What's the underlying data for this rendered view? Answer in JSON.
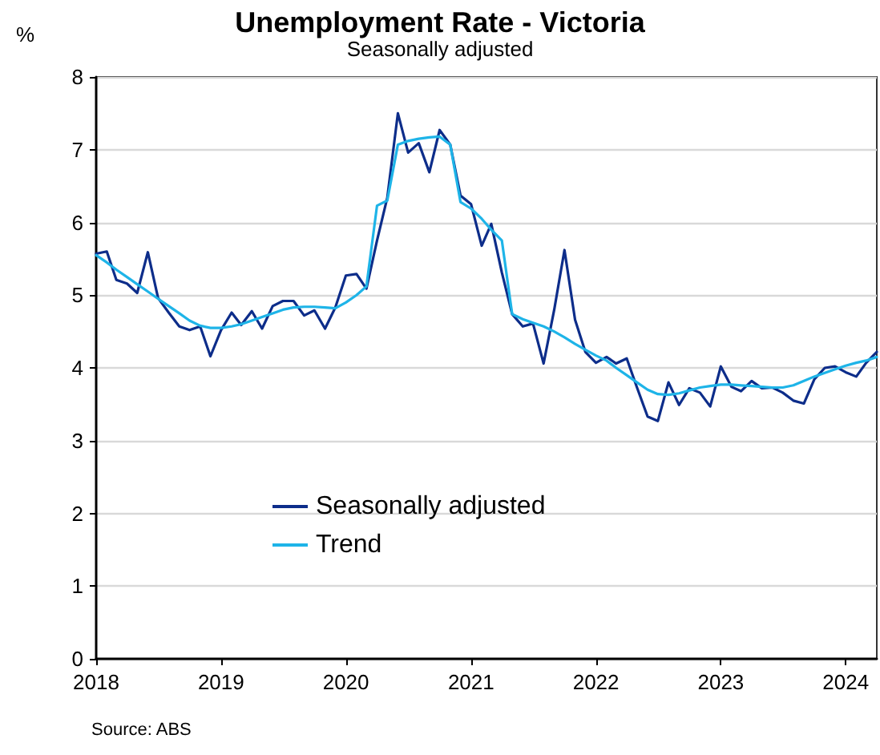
{
  "chart_data": {
    "type": "line",
    "title": "Unemployment Rate - Victoria",
    "subtitle": "Seasonally adjusted",
    "ylabel": "%",
    "annotations": [
      "Source: ABS"
    ],
    "x": [
      "2018-01",
      "2018-02",
      "2018-03",
      "2018-04",
      "2018-05",
      "2018-06",
      "2018-07",
      "2018-08",
      "2018-09",
      "2018-10",
      "2018-11",
      "2018-12",
      "2019-01",
      "2019-02",
      "2019-03",
      "2019-04",
      "2019-05",
      "2019-06",
      "2019-07",
      "2019-08",
      "2019-09",
      "2019-10",
      "2019-11",
      "2019-12",
      "2020-01",
      "2020-02",
      "2020-03",
      "2020-04",
      "2020-05",
      "2020-06",
      "2020-07",
      "2020-08",
      "2020-09",
      "2020-10",
      "2020-11",
      "2020-12",
      "2021-01",
      "2021-02",
      "2021-03",
      "2021-04",
      "2021-05",
      "2021-06",
      "2021-07",
      "2021-08",
      "2021-09",
      "2021-10",
      "2021-11",
      "2021-12",
      "2022-01",
      "2022-02",
      "2022-03",
      "2022-04",
      "2022-05",
      "2022-06",
      "2022-07",
      "2022-08",
      "2022-09",
      "2022-10",
      "2022-11",
      "2022-12",
      "2023-01",
      "2023-02",
      "2023-03",
      "2023-04",
      "2023-05",
      "2023-06",
      "2023-07",
      "2023-08",
      "2023-09",
      "2023-10",
      "2023-11",
      "2023-12",
      "2024-01",
      "2024-02",
      "2024-03",
      "2024-04"
    ],
    "series": [
      {
        "name": "Seasonally adjusted",
        "color": "#0d2d8a",
        "values": [
          5.57,
          5.6,
          5.21,
          5.16,
          5.03,
          5.59,
          4.96,
          4.76,
          4.57,
          4.52,
          4.57,
          4.16,
          4.52,
          4.76,
          4.59,
          4.78,
          4.54,
          4.85,
          4.92,
          4.92,
          4.72,
          4.79,
          4.54,
          4.83,
          5.27,
          5.29,
          5.09,
          5.75,
          6.34,
          7.5,
          6.96,
          7.09,
          6.69,
          7.27,
          7.07,
          6.37,
          6.25,
          5.68,
          5.98,
          5.31,
          4.74,
          4.57,
          4.61,
          4.06,
          4.8,
          5.62,
          4.66,
          4.22,
          4.07,
          4.15,
          4.06,
          4.13,
          3.73,
          3.33,
          3.27,
          3.8,
          3.49,
          3.72,
          3.66,
          3.47,
          4.02,
          3.74,
          3.68,
          3.82,
          3.72,
          3.73,
          3.66,
          3.55,
          3.51,
          3.84,
          4.0,
          4.02,
          3.94,
          3.88,
          4.07,
          4.22
        ]
      },
      {
        "name": "Trend",
        "color": "#1eb4e8",
        "values": [
          5.55,
          5.45,
          5.35,
          5.25,
          5.15,
          5.05,
          4.95,
          4.85,
          4.75,
          4.65,
          4.58,
          4.55,
          4.55,
          4.57,
          4.6,
          4.65,
          4.7,
          4.75,
          4.8,
          4.83,
          4.84,
          4.84,
          4.83,
          4.82,
          4.9,
          5.0,
          5.12,
          6.23,
          6.3,
          7.07,
          7.12,
          7.15,
          7.17,
          7.18,
          7.07,
          6.28,
          6.19,
          6.05,
          5.9,
          5.75,
          4.74,
          4.67,
          4.62,
          4.57,
          4.5,
          4.42,
          4.33,
          4.25,
          4.17,
          4.1,
          4.0,
          3.9,
          3.8,
          3.7,
          3.64,
          3.63,
          3.65,
          3.69,
          3.73,
          3.75,
          3.77,
          3.77,
          3.76,
          3.75,
          3.74,
          3.73,
          3.73,
          3.76,
          3.82,
          3.88,
          3.93,
          3.98,
          4.03,
          4.07,
          4.1,
          4.15
        ]
      }
    ],
    "xlim": [
      "2018-01",
      "2024-04"
    ],
    "xticks": [
      "2018",
      "2019",
      "2020",
      "2021",
      "2022",
      "2023",
      "2024"
    ],
    "ylim": [
      0,
      8
    ],
    "yticks": [
      0,
      1,
      2,
      3,
      4,
      5,
      6,
      7,
      8
    ],
    "grid": "y",
    "legend": "bottom left",
    "marker": "none",
    "line_style": "solid"
  }
}
